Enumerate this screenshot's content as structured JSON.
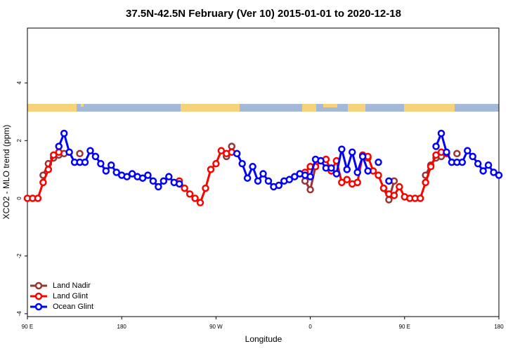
{
  "chart_data": {
    "type": "line",
    "title": "37.5N-42.5N February (Ver 10)   2015-01-01 to 2020-12-18",
    "x_label": "Longitude",
    "y_label": "XCO2 - MLO trend (ppm)",
    "x": [
      90,
      95,
      100,
      105,
      110,
      115,
      120,
      125,
      130,
      135,
      140,
      145,
      150,
      155,
      160,
      165,
      170,
      175,
      180,
      185,
      190,
      195,
      200,
      205,
      210,
      215,
      220,
      225,
      230,
      235,
      240,
      245,
      250,
      255,
      260,
      265,
      270,
      275,
      280,
      285,
      290,
      295,
      300,
      305,
      310,
      315,
      320,
      325,
      330,
      335,
      340,
      345,
      350,
      355,
      360,
      365,
      370,
      375,
      380,
      385,
      390,
      395,
      400,
      405,
      410,
      415,
      420,
      425,
      430,
      435,
      440,
      445,
      450,
      455,
      460,
      465,
      470,
      475,
      480,
      485,
      490,
      495,
      500,
      505,
      510,
      515,
      520,
      525,
      530,
      535,
      540
    ],
    "xlim": [
      90,
      540
    ],
    "xticks": [
      {
        "value": 90,
        "label": "90 E"
      },
      {
        "value": 180,
        "label": "180"
      },
      {
        "value": 270,
        "label": "90 W"
      },
      {
        "value": 360,
        "label": "0"
      },
      {
        "value": 450,
        "label": "90 E"
      },
      {
        "value": 540,
        "label": "180"
      }
    ],
    "ylim": [
      -4.1,
      5.9
    ],
    "yticks": [
      -4,
      -2,
      0,
      2,
      4
    ],
    "legend": "bottom-left",
    "series": [
      {
        "name": "Land Nadir",
        "color": "#993333",
        "values": [
          null,
          null,
          null,
          0.8,
          1.2,
          1.4,
          1.5,
          1.55,
          null,
          null,
          1.55,
          null,
          null,
          null,
          null,
          null,
          null,
          null,
          null,
          null,
          null,
          null,
          null,
          null,
          null,
          null,
          null,
          null,
          null,
          null,
          null,
          null,
          null,
          null,
          null,
          null,
          null,
          null,
          1.45,
          1.8,
          null,
          null,
          null,
          null,
          null,
          null,
          null,
          null,
          null,
          null,
          null,
          null,
          null,
          0.6,
          0.3,
          1.1,
          null,
          null,
          null,
          null,
          null,
          null,
          null,
          null,
          null,
          1.4,
          null,
          null,
          0.35,
          -0.05,
          0.6,
          null,
          null,
          null,
          null,
          null,
          0.8,
          1.15,
          1.4,
          1.45,
          null,
          null,
          1.55,
          null,
          null,
          null,
          null,
          null,
          null,
          null,
          null
        ]
      },
      {
        "name": "Land Glint",
        "color": "#ff0000",
        "values": [
          0,
          0,
          0,
          0.55,
          1.0,
          1.5,
          1.6,
          null,
          null,
          null,
          null,
          null,
          null,
          null,
          null,
          null,
          null,
          null,
          null,
          null,
          null,
          null,
          null,
          null,
          null,
          null,
          null,
          null,
          null,
          0.6,
          0.35,
          0.15,
          0,
          -0.15,
          0.35,
          1.0,
          1.2,
          1.65,
          1.55,
          1.6,
          null,
          null,
          null,
          null,
          null,
          null,
          null,
          null,
          null,
          null,
          null,
          null,
          null,
          0.9,
          1.1,
          1.1,
          1.3,
          1.35,
          0.95,
          1.3,
          0.55,
          0.65,
          0.5,
          0.55,
          1.5,
          1.45,
          0.95,
          0.8,
          0.35,
          0.15,
          0.1,
          0.4,
          0.05,
          0,
          0,
          0,
          0.55,
          1.1,
          1.5,
          1.6,
          1.55,
          null,
          null,
          null,
          null,
          null,
          null,
          null,
          null,
          null,
          null
        ]
      },
      {
        "name": "Ocean Glint",
        "color": "#0000ff",
        "values": [
          null,
          null,
          null,
          null,
          null,
          null,
          1.8,
          2.25,
          1.6,
          1.25,
          1.25,
          1.25,
          1.65,
          1.45,
          1.2,
          0.95,
          1.15,
          0.9,
          0.8,
          0.75,
          0.85,
          0.75,
          0.7,
          0.8,
          0.6,
          0.4,
          0.6,
          0.75,
          0.55,
          0.5,
          null,
          null,
          null,
          null,
          null,
          null,
          null,
          null,
          null,
          null,
          1.55,
          1.2,
          0.7,
          1.1,
          0.6,
          0.85,
          0.6,
          0.4,
          0.45,
          0.6,
          0.65,
          0.75,
          0.85,
          0.8,
          0.75,
          1.35,
          1.3,
          1.05,
          1.05,
          0.85,
          1.7,
          1.0,
          1.6,
          0.9,
          1.45,
          0.95,
          null,
          1.25,
          null,
          0.6,
          null,
          null,
          null,
          null,
          null,
          null,
          null,
          null,
          1.8,
          2.25,
          1.6,
          1.25,
          1.25,
          1.25,
          1.65,
          1.45,
          1.2,
          0.95,
          1.15,
          0.9,
          0.8
        ]
      }
    ]
  }
}
